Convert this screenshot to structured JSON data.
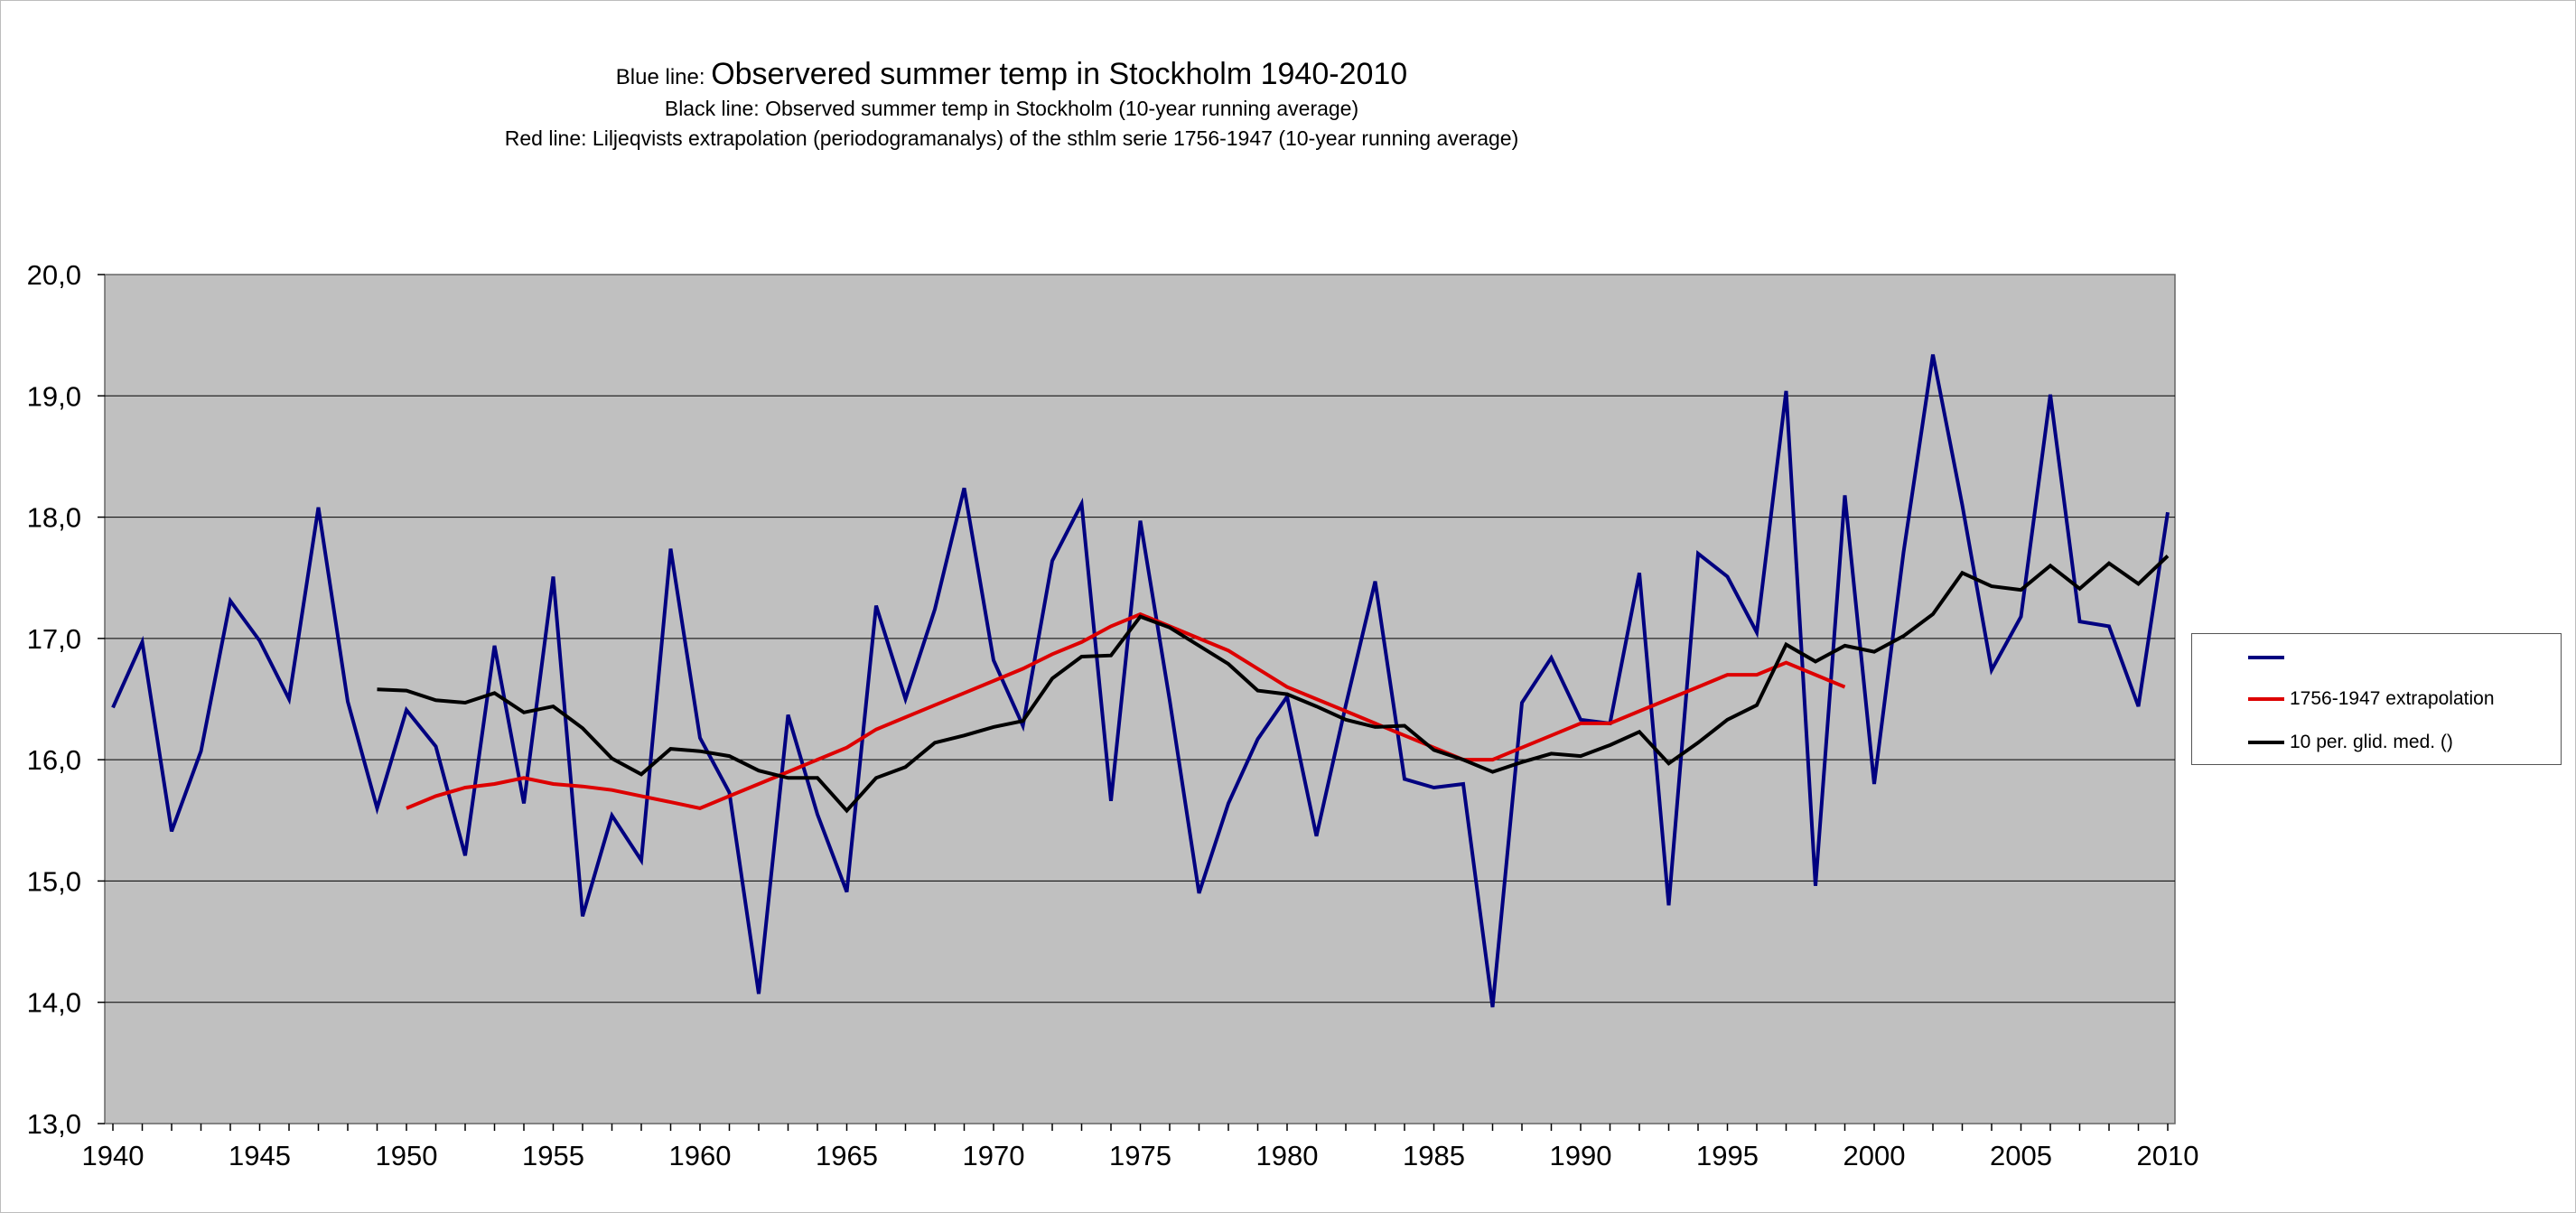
{
  "titles": {
    "line1_prefix": "Blue line:",
    "line1_main": "Observered summer temp in Stockholm 1940-2010",
    "line2": "Black line: Observed summer temp in Stockholm (10-year running average)",
    "line3": "Red line: Liljeqvists extrapolation (periodogramanalys) of the sthlm serie 1756-1947 (10-year running average)"
  },
  "chart_data": {
    "type": "line",
    "title": "Observered summer temp in Stockholm 1940-2010",
    "xlabel": "",
    "ylabel": "",
    "xlim": [
      1940,
      2010
    ],
    "ylim": [
      13.0,
      20.0
    ],
    "x_ticks": [
      "1940",
      "1945",
      "1950",
      "1955",
      "1960",
      "1965",
      "1970",
      "1975",
      "1980",
      "1985",
      "1990",
      "1995",
      "2000",
      "2005",
      "2010"
    ],
    "y_ticks": [
      "13,0",
      "14,0",
      "15,0",
      "16,0",
      "17,0",
      "18,0",
      "19,0",
      "20,0"
    ],
    "grid": "horizontal",
    "background": "#c0c0c0",
    "legend_position": "right",
    "series": [
      {
        "name": "",
        "color": "#000080",
        "x_start": 1940,
        "values": [
          16.43,
          16.97,
          15.41,
          16.07,
          17.31,
          16.98,
          16.5,
          18.08,
          16.48,
          15.6,
          16.41,
          16.11,
          15.21,
          16.94,
          15.64,
          17.51,
          14.71,
          15.54,
          15.17,
          17.74,
          16.18,
          15.73,
          14.07,
          16.37,
          15.55,
          14.91,
          17.27,
          16.5,
          17.24,
          18.24,
          16.82,
          16.28,
          17.64,
          18.11,
          15.66,
          17.97,
          16.49,
          14.9,
          15.64,
          16.17,
          16.52,
          15.37,
          16.45,
          17.47,
          15.84,
          15.77,
          15.8,
          13.96,
          16.47,
          16.84,
          16.33,
          16.3,
          17.54,
          14.8,
          17.7,
          17.51,
          17.05,
          19.04,
          14.96,
          18.18,
          15.8,
          17.71,
          19.34,
          18.1,
          16.74,
          17.18,
          19.01,
          17.14,
          17.1,
          16.44,
          18.04
        ]
      },
      {
        "name": "1756-1947 extrapolation",
        "color": "#dd0000",
        "x_start": 1950,
        "values": [
          15.6,
          15.7,
          15.77,
          15.8,
          15.85,
          15.8,
          15.78,
          15.75,
          15.7,
          15.65,
          15.6,
          15.7,
          15.8,
          15.9,
          16.0,
          16.1,
          16.25,
          16.35,
          16.45,
          16.55,
          16.65,
          16.75,
          16.87,
          16.97,
          17.1,
          17.2,
          17.1,
          17.0,
          16.9,
          16.75,
          16.6,
          16.5,
          16.4,
          16.3,
          16.2,
          16.1,
          16.0,
          16.0,
          16.1,
          16.2,
          16.3,
          16.3,
          16.4,
          16.5,
          16.6,
          16.7,
          16.7,
          16.8,
          16.7,
          16.6
        ]
      },
      {
        "name": "10 per. glid. med. ()",
        "color": "#000000",
        "x_start": 1949,
        "values": [
          16.58,
          16.57,
          16.49,
          16.47,
          16.55,
          16.39,
          16.44,
          16.26,
          16.01,
          15.88,
          16.09,
          16.07,
          16.03,
          15.91,
          15.85,
          15.85,
          15.58,
          15.85,
          15.94,
          16.14,
          16.2,
          16.27,
          16.32,
          16.67,
          16.85,
          16.86,
          17.18,
          17.09,
          16.94,
          16.79,
          16.57,
          16.54,
          16.44,
          16.33,
          16.27,
          16.28,
          16.08,
          16.0,
          15.9,
          15.98,
          16.05,
          16.03,
          16.12,
          16.23,
          15.97,
          16.14,
          16.33,
          16.45,
          16.95,
          16.81,
          16.94,
          16.89,
          17.02,
          17.2,
          17.54,
          17.43,
          17.4,
          17.6,
          17.41,
          17.62,
          17.45,
          17.68
        ]
      }
    ]
  }
}
